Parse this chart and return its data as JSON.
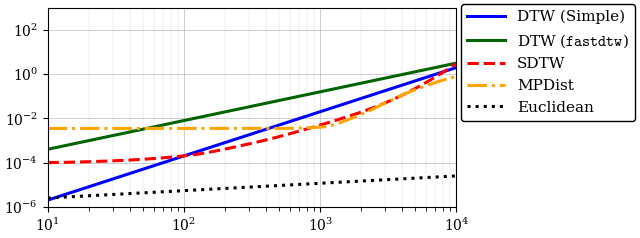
{
  "xlim": [
    10,
    10000
  ],
  "ylim": [
    1e-06,
    1000.0
  ],
  "dtw_simple": {
    "color": "#0000ff",
    "linestyle": "solid",
    "linewidth": 2.2,
    "coeff": 2e-08,
    "power": 2.0
  },
  "dtw_fast": {
    "color": "#006400",
    "linestyle": "solid",
    "linewidth": 2.2,
    "coeff": 2e-05,
    "power": 1.3
  },
  "sdtw": {
    "color": "#ff0000",
    "linestyle": "dashed",
    "linewidth": 2.2,
    "x": [
      10,
      30,
      100,
      300,
      1000,
      3000,
      10000
    ],
    "y": [
      0.0001,
      0.00012,
      0.0002,
      0.0007,
      0.005,
      0.05,
      3.0
    ]
  },
  "mpdist": {
    "color": "#ffa500",
    "linestyle": "dashdot",
    "linewidth": 2.2,
    "x": [
      10,
      30,
      100,
      300,
      500,
      1000,
      2000,
      3000,
      5000,
      10000
    ],
    "y": [
      0.0035,
      0.0035,
      0.0035,
      0.0035,
      0.0035,
      0.004,
      0.015,
      0.05,
      0.2,
      0.8
    ]
  },
  "euclidean": {
    "color": "#000000",
    "linestyle": "dotted",
    "linewidth": 2.2,
    "x": [
      10,
      10000
    ],
    "y": [
      2.5e-06,
      2.5e-05
    ]
  },
  "legend_fontsize": 11,
  "tick_fontsize": 10,
  "grid_color": "#aaaaaa",
  "grid_linewidth": 0.5
}
